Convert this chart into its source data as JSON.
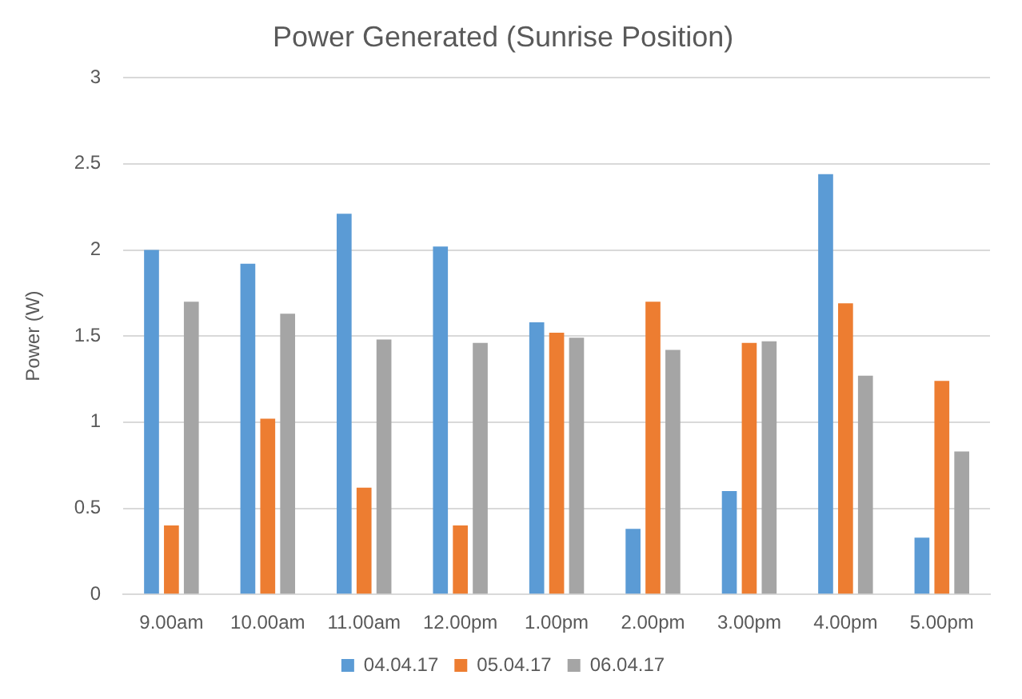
{
  "chart_data": {
    "type": "bar",
    "title": "Power Generated (Sunrise Position)",
    "ylabel": "Power (W)",
    "categories": [
      "9.00am",
      "10.00am",
      "11.00am",
      "12.00pm",
      "1.00pm",
      "2.00pm",
      "3.00pm",
      "4.00pm",
      "5.00pm"
    ],
    "series": [
      {
        "name": "04.04.17",
        "color": "#5b9bd5",
        "values": [
          2.0,
          1.92,
          2.21,
          2.02,
          1.58,
          0.38,
          0.6,
          2.44,
          0.33
        ]
      },
      {
        "name": "05.04.17",
        "color": "#ed7d31",
        "values": [
          0.4,
          1.02,
          0.62,
          0.4,
          1.52,
          1.7,
          1.46,
          1.69,
          1.24
        ]
      },
      {
        "name": "06.04.17",
        "color": "#a5a5a5",
        "values": [
          1.7,
          1.63,
          1.48,
          1.46,
          1.49,
          1.42,
          1.47,
          1.27,
          0.83
        ]
      }
    ],
    "ylim": [
      0,
      3
    ],
    "yticks": [
      0,
      0.5,
      1,
      1.5,
      2,
      2.5,
      3
    ],
    "grid": "y",
    "legend": "bottom"
  }
}
